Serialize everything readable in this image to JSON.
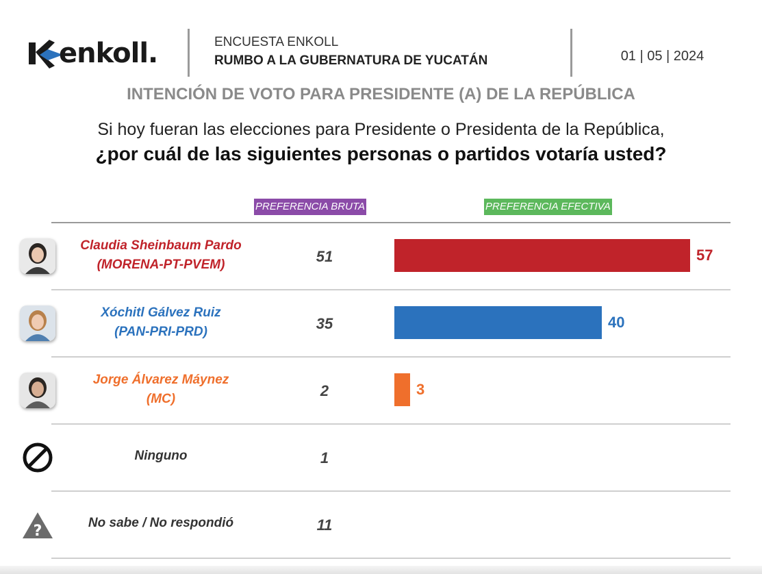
{
  "header": {
    "brand": "enkoll.",
    "survey_title": "ENCUESTA ENKOLL",
    "survey_subtitle": "RUMBO A LA GUBERNATURA DE YUCATÁN",
    "date": "01 | 05 | 2024"
  },
  "section_title": "INTENCIÓN DE VOTO PARA PRESIDENTE (A) DE LA REPÚBLICA",
  "question_line1": "Si hoy fueran las elecciones para Presidente o Presidenta de la República,",
  "question_line2": "¿por cuál de las siguientes personas o partidos votaría usted?",
  "columns": {
    "bruta": "PREFERENCIA BRUTA",
    "efectiva": "PREFERENCIA EFECTIVA"
  },
  "colors": {
    "morena": "#c0232a",
    "pan": "#2b72bd",
    "mc": "#ef6f2c",
    "neutral": "#333333"
  },
  "chart_data": {
    "type": "bar",
    "orientation": "horizontal",
    "categories": [
      "Claudia Sheinbaum Pardo (MORENA-PT-PVEM)",
      "Xóchitl Gálvez Ruiz (PAN-PRI-PRD)",
      "Jorge Álvarez Máynez (MC)",
      "Ninguno",
      "No sabe / No respondió"
    ],
    "series": [
      {
        "name": "PREFERENCIA BRUTA",
        "values": [
          51,
          35,
          2,
          1,
          11
        ]
      },
      {
        "name": "PREFERENCIA EFECTIVA",
        "values": [
          57,
          40,
          3,
          null,
          null
        ]
      }
    ],
    "xlim": [
      0,
      57
    ]
  },
  "rows": [
    {
      "name": "Claudia Sheinbaum Pardo",
      "party": "(MORENA-PT-PVEM)",
      "bruta": "51",
      "efectiva": 57,
      "efectiva_label": "57",
      "color": "#c0232a",
      "icon": "candidate-photo"
    },
    {
      "name": "Xóchitl Gálvez Ruiz",
      "party": "(PAN-PRI-PRD)",
      "bruta": "35",
      "efectiva": 40,
      "efectiva_label": "40",
      "color": "#2b72bd",
      "icon": "candidate-photo"
    },
    {
      "name": "Jorge Álvarez Máynez",
      "party": "(MC)",
      "bruta": "2",
      "efectiva": 3,
      "efectiva_label": "3",
      "color": "#ef6f2c",
      "icon": "candidate-photo"
    },
    {
      "name": "Ninguno",
      "party": "",
      "bruta": "1",
      "efectiva": null,
      "efectiva_label": "",
      "color": "#333333",
      "icon": "prohibited-icon"
    },
    {
      "name": "No sabe / No respondió",
      "party": "",
      "bruta": "11",
      "efectiva": null,
      "efectiva_label": "",
      "color": "#333333",
      "icon": "question-triangle-icon"
    }
  ]
}
